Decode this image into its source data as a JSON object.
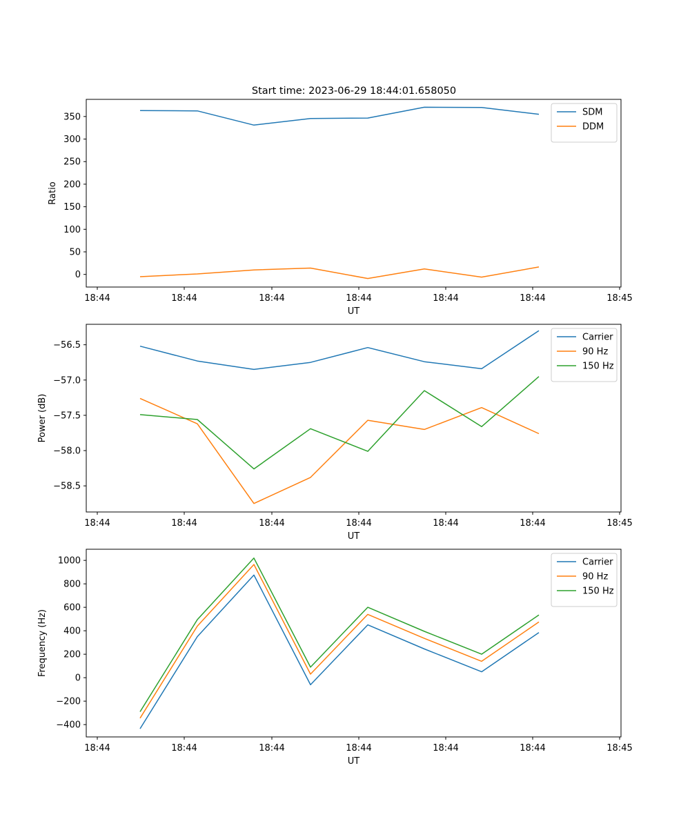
{
  "figure": {
    "title": "Start time: 2023-06-29 18:44:01.658050"
  },
  "chart_data": [
    {
      "type": "line",
      "xlabel": "UT",
      "ylabel": "Ratio",
      "x_tick_labels": [
        "18:44",
        "18:44",
        "18:44",
        "18:44",
        "18:44",
        "18:44",
        "18:45"
      ],
      "ylim": [
        -28,
        388
      ],
      "y_ticks": [
        0,
        50,
        100,
        150,
        200,
        250,
        300,
        350
      ],
      "legend_position": "top-right",
      "series": [
        {
          "name": "SDM",
          "color": "#1f77b4",
          "values": [
            363,
            362.5,
            331,
            345.5,
            346.5,
            370.5,
            370,
            355
          ]
        },
        {
          "name": "DDM",
          "color": "#ff7f0e",
          "values": [
            -5,
            1,
            10,
            14,
            -9,
            12,
            -6,
            16.5
          ]
        }
      ]
    },
    {
      "type": "line",
      "xlabel": "UT",
      "ylabel": "Power (dB)",
      "x_tick_labels": [
        "18:44",
        "18:44",
        "18:44",
        "18:44",
        "18:44",
        "18:44",
        "18:45"
      ],
      "ylim": [
        -58.87,
        -56.21
      ],
      "y_ticks": [
        -58.5,
        -58.0,
        -57.5,
        -57.0,
        -56.5
      ],
      "y_tick_labels": [
        "−58.5",
        "−58.0",
        "−57.5",
        "−57.0",
        "−56.5"
      ],
      "legend_position": "top-right",
      "series": [
        {
          "name": "Carrier",
          "color": "#1f77b4",
          "values": [
            -56.52,
            -56.73,
            -56.85,
            -56.75,
            -56.54,
            -56.74,
            -56.84,
            -56.3
          ]
        },
        {
          "name": "90 Hz",
          "color": "#ff7f0e",
          "values": [
            -57.26,
            -57.62,
            -58.75,
            -58.38,
            -57.57,
            -57.7,
            -57.39,
            -57.76
          ]
        },
        {
          "name": "150 Hz",
          "color": "#2ca02c",
          "values": [
            -57.49,
            -57.56,
            -58.26,
            -57.69,
            -58.01,
            -57.15,
            -57.66,
            -56.95
          ]
        }
      ]
    },
    {
      "type": "line",
      "xlabel": "UT",
      "ylabel": "Frequency (Hz)",
      "x_tick_labels": [
        "18:44",
        "18:44",
        "18:44",
        "18:44",
        "18:44",
        "18:44",
        "18:45"
      ],
      "ylim": [
        -505,
        1095
      ],
      "y_ticks": [
        -400,
        -200,
        0,
        200,
        400,
        600,
        800,
        1000
      ],
      "y_tick_labels": [
        "−400",
        "−200",
        "0",
        "200",
        "400",
        "600",
        "800",
        "1000"
      ],
      "legend_position": "top-right",
      "series": [
        {
          "name": "Carrier",
          "color": "#1f77b4",
          "values": [
            -435,
            350,
            875,
            -60,
            450,
            245,
            50,
            385
          ]
        },
        {
          "name": "90 Hz",
          "color": "#ff7f0e",
          "values": [
            -345,
            440,
            965,
            30,
            540,
            335,
            140,
            475
          ]
        },
        {
          "name": "150 Hz",
          "color": "#2ca02c",
          "values": [
            -290,
            495,
            1020,
            90,
            600,
            395,
            200,
            535
          ]
        }
      ]
    }
  ]
}
